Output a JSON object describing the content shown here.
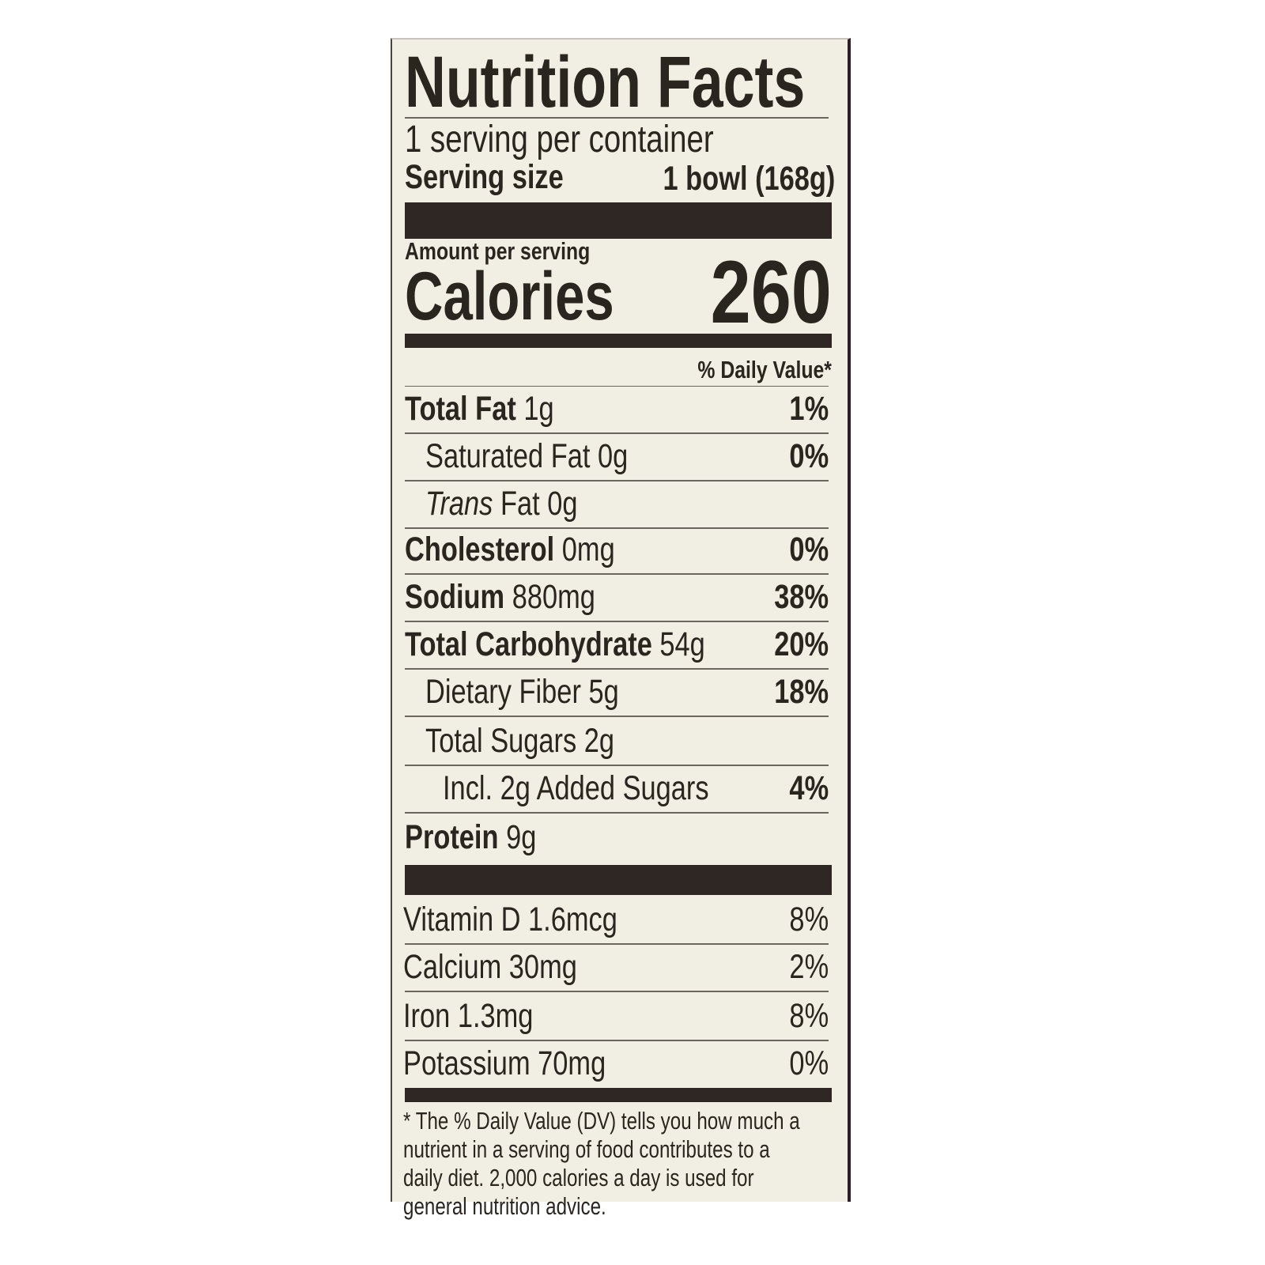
{
  "title": "Nutrition Facts",
  "servings_per_container": "1 serving per container",
  "serving_size_label": "Serving size",
  "serving_size_value": "1 bowl (168g)",
  "amount_per_serving": "Amount per serving",
  "calories_label": "Calories",
  "calories_value": "260",
  "daily_value_header": "% Daily Value*",
  "nutrients": [
    {
      "label": "Total Fat",
      "amount": "1g",
      "dv": "1%",
      "bold": true,
      "indent": 0
    },
    {
      "label": "Saturated Fat",
      "amount": "0g",
      "dv": "0%",
      "bold": false,
      "indent": 1
    },
    {
      "label_italic": "Trans",
      "label": "Fat",
      "amount": "0g",
      "dv": "",
      "bold": false,
      "indent": 1
    },
    {
      "label": "Cholesterol",
      "amount": "0mg",
      "dv": "0%",
      "bold": true,
      "indent": 0
    },
    {
      "label": "Sodium",
      "amount": "880mg",
      "dv": "38%",
      "bold": true,
      "indent": 0
    },
    {
      "label": "Total Carbohydrate",
      "amount": "54g",
      "dv": "20%",
      "bold": true,
      "indent": 0
    },
    {
      "label": "Dietary Fiber",
      "amount": "5g",
      "dv": "18%",
      "bold": false,
      "indent": 1
    },
    {
      "label": "Total Sugars",
      "amount": "2g",
      "dv": "",
      "bold": false,
      "indent": 1
    },
    {
      "label": "Incl. 2g Added Sugars",
      "amount": "",
      "dv": "4%",
      "bold": false,
      "indent": 2
    },
    {
      "label": "Protein",
      "amount": "9g",
      "dv": "",
      "bold": true,
      "indent": 0
    }
  ],
  "vitamins": [
    {
      "label": "Vitamin D 1.6mcg",
      "dv": "8%"
    },
    {
      "label": "Calcium 30mg",
      "dv": "2%"
    },
    {
      "label": "Iron 1.3mg",
      "dv": "8%"
    },
    {
      "label": "Potassium 70mg",
      "dv": "0%"
    }
  ],
  "footnote": "* The % Daily Value (DV) tells you how much a nutrient in a serving of food contributes to a daily diet. 2,000 calories a day is used for general nutrition advice.",
  "colors": {
    "background": "#f1eee3",
    "ink": "#2b2520"
  }
}
